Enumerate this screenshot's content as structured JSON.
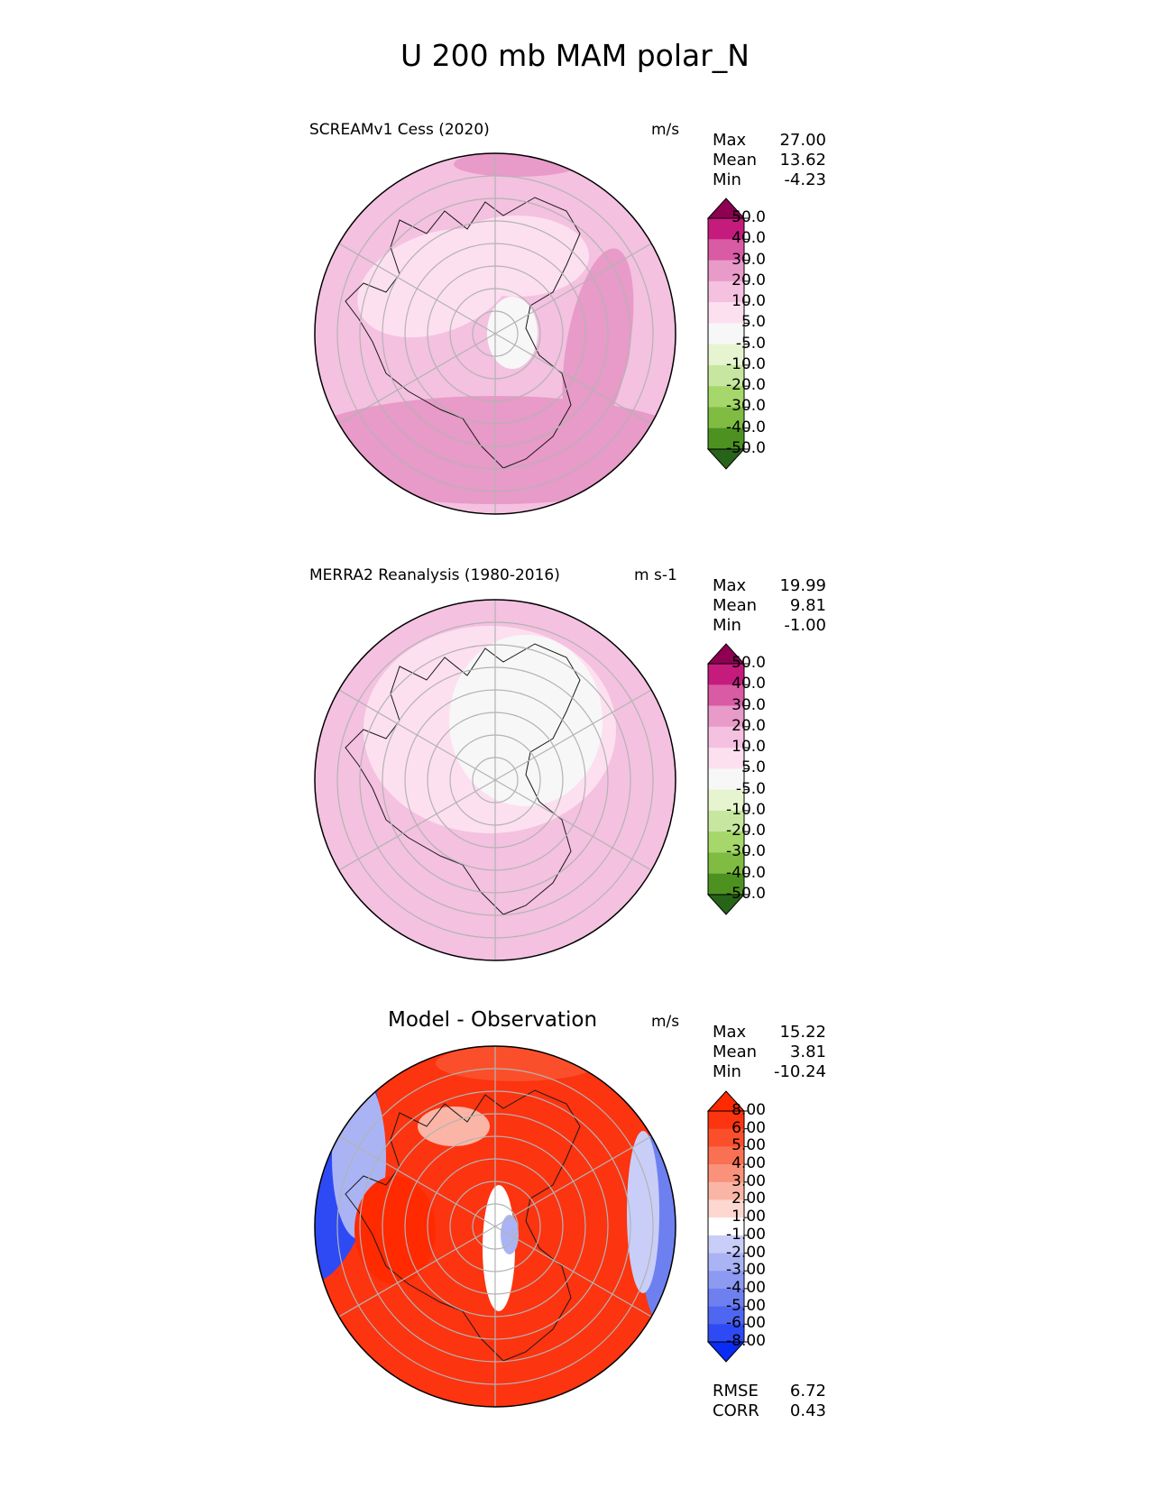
{
  "title": "U 200 mb MAM polar_N",
  "colors": {
    "land_line": "#1a1a1a",
    "grid_line": "#b3b3b3",
    "frame": "#000000"
  },
  "chart_data": [
    {
      "type": "heatmap",
      "projection": "north-polar-stereographic",
      "title": "SCREAMv1 Cess (2020)",
      "units": "m/s",
      "stats": {
        "max": "27.00",
        "mean": "13.62",
        "min": "-4.23"
      },
      "stat_labels": {
        "max": "Max",
        "mean": "Mean",
        "min": "Min"
      },
      "colorbar": {
        "levels": [
          "-50.0",
          "-40.0",
          "-30.0",
          "-20.0",
          "-10.0",
          "-5.0",
          "5.0",
          "10.0",
          "20.0",
          "30.0",
          "40.0",
          "50.0"
        ],
        "colors": [
          "#276419",
          "#4d9221",
          "#7fbc41",
          "#a6d76a",
          "#c7e7a0",
          "#e6f5d0",
          "#f7f7f7",
          "#fde0ef",
          "#f4c1e0",
          "#e89ac8",
          "#d95ba3",
          "#c51b7d",
          "#8e0152"
        ]
      }
    },
    {
      "type": "heatmap",
      "projection": "north-polar-stereographic",
      "title": "MERRA2 Reanalysis (1980-2016)",
      "units": "m s-1",
      "stats": {
        "max": "19.99",
        "mean": "9.81",
        "min": "-1.00"
      },
      "stat_labels": {
        "max": "Max",
        "mean": "Mean",
        "min": "Min"
      },
      "colorbar": {
        "levels": [
          "-50.0",
          "-40.0",
          "-30.0",
          "-20.0",
          "-10.0",
          "-5.0",
          "5.0",
          "10.0",
          "20.0",
          "30.0",
          "40.0",
          "50.0"
        ],
        "colors": [
          "#276419",
          "#4d9221",
          "#7fbc41",
          "#a6d76a",
          "#c7e7a0",
          "#e6f5d0",
          "#f7f7f7",
          "#fde0ef",
          "#f4c1e0",
          "#e89ac8",
          "#d95ba3",
          "#c51b7d",
          "#8e0152"
        ]
      }
    },
    {
      "type": "heatmap",
      "projection": "north-polar-stereographic",
      "title": "Model - Observation",
      "units": "m/s",
      "stats": {
        "max": "15.22",
        "mean": "3.81",
        "min": "-10.24"
      },
      "stat_labels": {
        "max": "Max",
        "mean": "Mean",
        "min": "Min"
      },
      "metrics": {
        "rmse_label": "RMSE",
        "rmse": "6.72",
        "corr_label": "CORR",
        "corr": "0.43"
      },
      "colorbar": {
        "levels": [
          "-8.00",
          "-6.00",
          "-5.00",
          "-4.00",
          "-3.00",
          "-2.00",
          "-1.00",
          "1.00",
          "2.00",
          "3.00",
          "4.00",
          "5.00",
          "6.00",
          "8.00"
        ],
        "colors": [
          "#0a2cf5",
          "#2e4af5",
          "#4f66f0",
          "#6e80f0",
          "#8d9af2",
          "#aab4f4",
          "#c8cef7",
          "#ffffff",
          "#fcd8d0",
          "#fbb5a6",
          "#fa927b",
          "#fa7052",
          "#fb4f2b",
          "#fc3410",
          "#ff2a00"
        ]
      }
    }
  ]
}
